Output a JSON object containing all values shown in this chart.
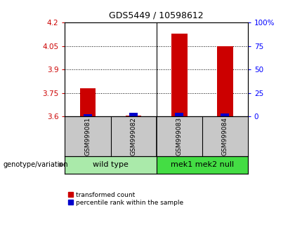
{
  "title": "GDS5449 / 10598612",
  "samples": [
    "GSM999081",
    "GSM999082",
    "GSM999083",
    "GSM999084"
  ],
  "group_labels": [
    "wild type",
    "mek1 mek2 null"
  ],
  "red_values": [
    3.78,
    3.605,
    4.13,
    4.05
  ],
  "blue_values": [
    3.615,
    3.625,
    3.625,
    3.62
  ],
  "ymin": 3.6,
  "ymax": 4.2,
  "yticks_left": [
    3.6,
    3.75,
    3.9,
    4.05,
    4.2
  ],
  "yticks_right": [
    0,
    25,
    50,
    75,
    100
  ],
  "y_right_labels": [
    "0",
    "25",
    "50",
    "75",
    "100%"
  ],
  "bar_width": 0.35,
  "blue_bar_width": 0.18,
  "red_color": "#cc0000",
  "blue_color": "#0000cc",
  "bg_plot": "#ffffff",
  "bg_sample": "#c8c8c8",
  "bg_group_wt": "#aaeaaa",
  "bg_group_mek": "#44dd44",
  "label_genotype": "genotype/variation",
  "legend_red": "transformed count",
  "legend_blue": "percentile rank within the sample",
  "dotted_yticks": [
    3.75,
    3.9,
    4.05
  ],
  "title_fontsize": 9,
  "tick_fontsize": 7.5,
  "sample_fontsize": 6.5,
  "group_fontsize": 8,
  "legend_fontsize": 6.5
}
